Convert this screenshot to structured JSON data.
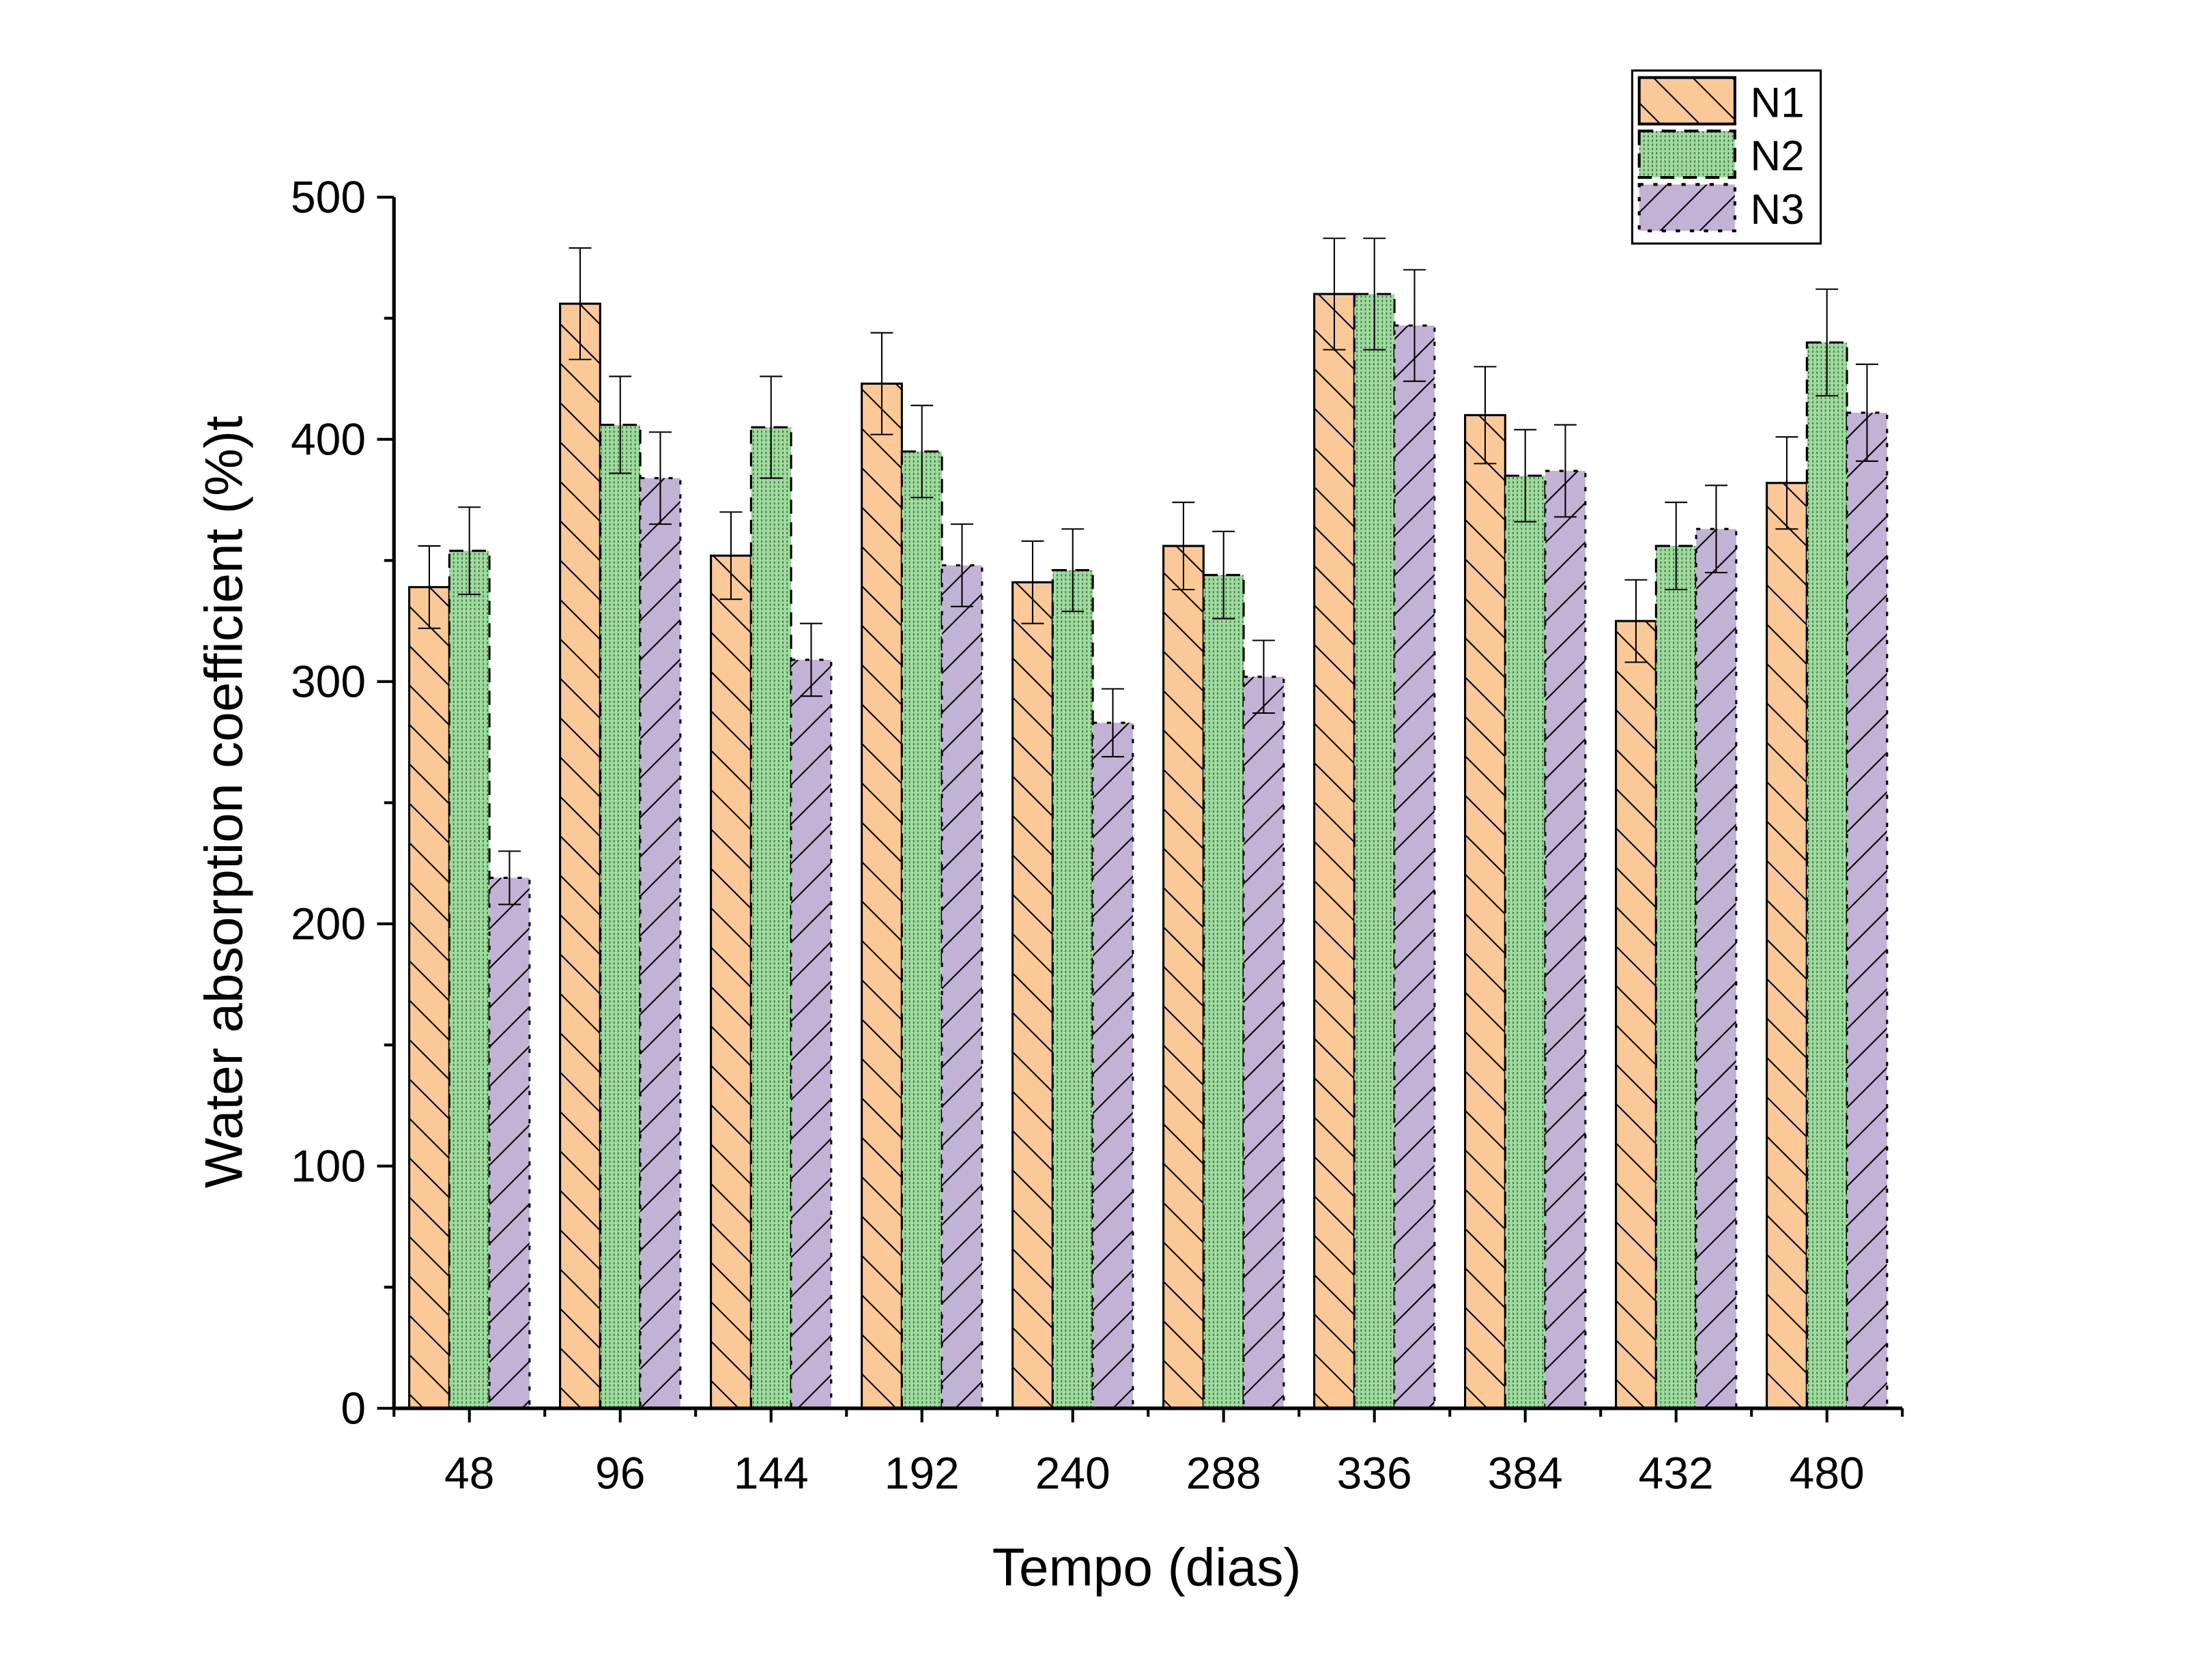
{
  "chart_data": {
    "type": "bar",
    "title": "",
    "xlabel": "Tempo (dias)",
    "ylabel": "Water absorption coefficient (%)t",
    "ylim": [
      0,
      500
    ],
    "yticks": [
      "0",
      "100",
      "200",
      "300",
      "400",
      "500"
    ],
    "categories": [
      "48",
      "96",
      "144",
      "192",
      "240",
      "288",
      "336",
      "384",
      "432",
      "480"
    ],
    "legend_position": "top-right",
    "grid": false,
    "series": [
      {
        "name": "N1",
        "color": "#FBC898",
        "pattern": "backslash-hatch",
        "values": [
          339,
          456,
          352,
          423,
          341,
          356,
          460,
          410,
          325,
          382
        ],
        "errors": [
          17,
          23,
          18,
          21,
          17,
          18,
          23,
          20,
          17,
          19
        ]
      },
      {
        "name": "N2",
        "color": "#9FDB9F",
        "pattern": "dots",
        "values": [
          354,
          406,
          405,
          395,
          346,
          344,
          460,
          385,
          356,
          440
        ],
        "errors": [
          18,
          20,
          21,
          19,
          17,
          18,
          23,
          19,
          18,
          22
        ]
      },
      {
        "name": "N3",
        "color": "#C2B2D6",
        "pattern": "slash-hatch",
        "values": [
          219,
          384,
          309,
          348,
          283,
          302,
          447,
          387,
          363,
          411
        ],
        "errors": [
          11,
          19,
          15,
          17,
          14,
          15,
          23,
          19,
          18,
          20
        ]
      }
    ]
  }
}
